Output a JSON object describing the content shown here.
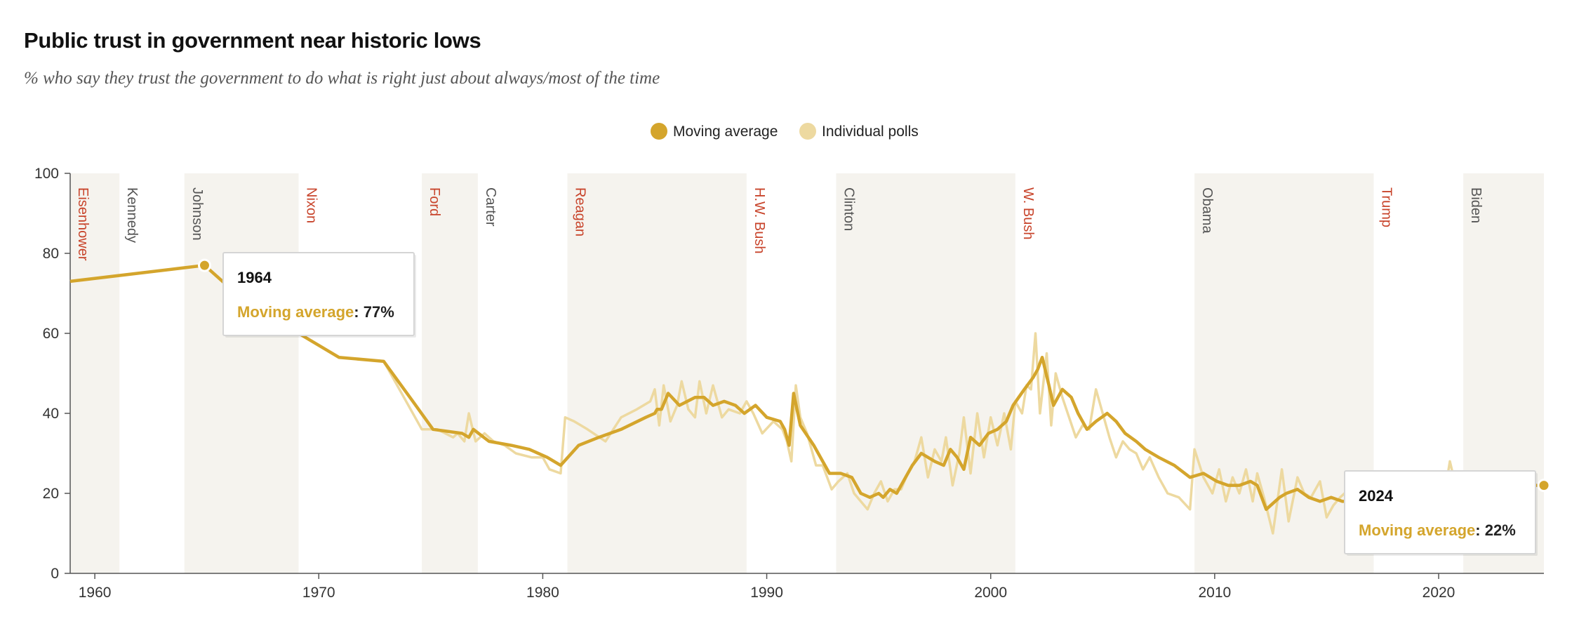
{
  "header": {
    "title": "Public trust in government near historic lows",
    "subtitle": "% who say they trust the government to do what is right just about always/most of the time"
  },
  "colors": {
    "moving_average": "#D4A52C",
    "individual_polls": "#EDD9A0",
    "republican": "#C8442B",
    "democrat": "#555555",
    "band": "#F5F3EE"
  },
  "chart_data": {
    "type": "line",
    "title": "Public trust in government near historic lows",
    "subtitle": "% who say they trust the government to do what is right just about always/most of the time",
    "xlim": [
      1958.9,
      2024.7
    ],
    "ylim": [
      0,
      100
    ],
    "x_ticks": [
      1960,
      1970,
      1980,
      1990,
      2000,
      2010,
      2020
    ],
    "y_ticks": [
      0,
      20,
      40,
      60,
      80,
      100
    ],
    "grid": false,
    "legend_position": "top-center",
    "legend": [
      "Moving average",
      "Individual polls"
    ],
    "presidents": [
      {
        "name": "Eisenhower",
        "start": 1958.9,
        "end": 1961.1,
        "party": "R"
      },
      {
        "name": "Kennedy",
        "start": 1961.1,
        "end": 1964.0,
        "party": "D"
      },
      {
        "name": "Johnson",
        "start": 1964.0,
        "end": 1969.1,
        "party": "D"
      },
      {
        "name": "Nixon",
        "start": 1969.1,
        "end": 1974.6,
        "party": "R"
      },
      {
        "name": "Ford",
        "start": 1974.6,
        "end": 1977.1,
        "party": "R"
      },
      {
        "name": "Carter",
        "start": 1977.1,
        "end": 1981.1,
        "party": "D"
      },
      {
        "name": "Reagan",
        "start": 1981.1,
        "end": 1989.1,
        "party": "R"
      },
      {
        "name": "H.W. Bush",
        "start": 1989.1,
        "end": 1993.1,
        "party": "R"
      },
      {
        "name": "Clinton",
        "start": 1993.1,
        "end": 2001.1,
        "party": "D"
      },
      {
        "name": "W. Bush",
        "start": 2001.1,
        "end": 2009.1,
        "party": "R"
      },
      {
        "name": "Obama",
        "start": 2009.1,
        "end": 2017.1,
        "party": "D"
      },
      {
        "name": "Trump",
        "start": 2017.1,
        "end": 2021.1,
        "party": "R"
      },
      {
        "name": "Biden",
        "start": 2021.1,
        "end": 2024.7,
        "party": "D"
      }
    ],
    "series": [
      {
        "name": "Moving average",
        "x": [
          1958.9,
          1964.9,
          1966.5,
          1968.5,
          1970.9,
          1972.9,
          1974.2,
          1975.1,
          1976.4,
          1976.7,
          1976.9,
          1977.6,
          1978.6,
          1979.4,
          1980.2,
          1980.8,
          1981.6,
          1982.5,
          1983.5,
          1984.6,
          1985.0,
          1985.1,
          1985.3,
          1985.6,
          1986.1,
          1986.8,
          1987.2,
          1987.6,
          1988.1,
          1988.6,
          1989.0,
          1989.5,
          1990.0,
          1990.6,
          1990.8,
          1991.0,
          1991.2,
          1991.5,
          1992.1,
          1992.8,
          1993.3,
          1993.8,
          1994.2,
          1994.6,
          1995.0,
          1995.2,
          1995.5,
          1995.8,
          1996.2,
          1996.5,
          1996.9,
          1997.2,
          1997.5,
          1997.9,
          1998.2,
          1998.5,
          1998.8,
          1999.1,
          1999.5,
          1999.9,
          2000.3,
          2000.7,
          2001.0,
          2001.5,
          2001.9,
          2002.1,
          2002.3,
          2002.6,
          2002.8,
          2003.2,
          2003.6,
          2003.9,
          2004.3,
          2004.7,
          2005.2,
          2005.6,
          2006.0,
          2006.5,
          2006.9,
          2007.5,
          2008.2,
          2008.9,
          2009.5,
          2010.1,
          2010.6,
          2011.1,
          2011.6,
          2011.9,
          2012.3,
          2012.9,
          2013.2,
          2013.7,
          2014.2,
          2014.7,
          2015.2,
          2015.7,
          2016.3,
          2016.8,
          2017.3,
          2017.8,
          2018.4,
          2019.0,
          2019.5,
          2020.0,
          2020.6,
          2021.2,
          2021.8,
          2022.5,
          2023.2,
          2023.8,
          2024.4
        ],
        "values": [
          73,
          77,
          69,
          62,
          54,
          53,
          43,
          36,
          35,
          34,
          36,
          33,
          32,
          31,
          29,
          27,
          32,
          34,
          36,
          39,
          40,
          41,
          41,
          45,
          42,
          44,
          44,
          42,
          43,
          42,
          40,
          42,
          39,
          38,
          36,
          32,
          45,
          37,
          32,
          25,
          25,
          24,
          20,
          19,
          20,
          19,
          21,
          20,
          24,
          27,
          30,
          29,
          28,
          27,
          31,
          29,
          26,
          34,
          32,
          35,
          36,
          38,
          42,
          46,
          49,
          51,
          54,
          47,
          42,
          46,
          44,
          40,
          36,
          38,
          40,
          38,
          35,
          33,
          31,
          29,
          27,
          24,
          25,
          23,
          22,
          22,
          23,
          22,
          16,
          19,
          20,
          21,
          19,
          18,
          19,
          18,
          18,
          18,
          18,
          19,
          18,
          18,
          19,
          20,
          21,
          21,
          22,
          22,
          22,
          22,
          22
        ]
      },
      {
        "name": "Individual polls",
        "x": [
          1958.9,
          1964.9,
          1966.5,
          1968.5,
          1970.9,
          1972.9,
          1974.6,
          1975.3,
          1976.0,
          1976.2,
          1976.5,
          1976.7,
          1977.0,
          1977.4,
          1977.8,
          1978.3,
          1978.8,
          1979.5,
          1980.0,
          1980.3,
          1980.8,
          1981.0,
          1981.4,
          1982.0,
          1982.8,
          1983.5,
          1984.2,
          1984.8,
          1985.0,
          1985.2,
          1985.4,
          1985.7,
          1986.0,
          1986.2,
          1986.5,
          1986.8,
          1987.0,
          1987.3,
          1987.6,
          1988.0,
          1988.3,
          1988.8,
          1989.1,
          1989.4,
          1989.8,
          1990.3,
          1990.7,
          1990.9,
          1991.1,
          1991.3,
          1991.5,
          1991.8,
          1992.2,
          1992.5,
          1992.9,
          1993.2,
          1993.6,
          1993.9,
          1994.2,
          1994.5,
          1994.8,
          1995.1,
          1995.4,
          1995.7,
          1996.0,
          1996.3,
          1996.6,
          1996.9,
          1997.2,
          1997.5,
          1997.8,
          1998.0,
          1998.3,
          1998.6,
          1998.8,
          1999.1,
          1999.4,
          1999.7,
          2000.0,
          2000.3,
          2000.6,
          2000.9,
          2001.1,
          2001.4,
          2001.6,
          2001.8,
          2002.0,
          2002.2,
          2002.5,
          2002.7,
          2002.9,
          2003.2,
          2003.5,
          2003.8,
          2004.1,
          2004.4,
          2004.7,
          2005.0,
          2005.3,
          2005.6,
          2005.9,
          2006.2,
          2006.5,
          2006.8,
          2007.1,
          2007.5,
          2007.9,
          2008.4,
          2008.9,
          2009.1,
          2009.5,
          2009.9,
          2010.2,
          2010.5,
          2010.8,
          2011.1,
          2011.4,
          2011.7,
          2011.9,
          2012.2,
          2012.6,
          2013.0,
          2013.3,
          2013.7,
          2014.0,
          2014.3,
          2014.7,
          2015.0,
          2015.3,
          2015.6,
          2016.0,
          2016.4,
          2016.8,
          2017.2,
          2017.6,
          2018.0,
          2018.4,
          2018.9,
          2019.3,
          2019.7,
          2020.0,
          2020.3,
          2020.5,
          2020.8,
          2021.2,
          2021.7,
          2022.2,
          2022.7,
          2023.2,
          2023.7,
          2024.2,
          2024.7
        ],
        "values": [
          73,
          77,
          69,
          62,
          54,
          53,
          36,
          36,
          34,
          35,
          33,
          40,
          33,
          35,
          33,
          32,
          30,
          29,
          29,
          26,
          25,
          39,
          38,
          36,
          33,
          39,
          41,
          43,
          46,
          37,
          47,
          38,
          42,
          48,
          41,
          39,
          48,
          40,
          47,
          39,
          41,
          40,
          43,
          40,
          35,
          38,
          36,
          33,
          28,
          47,
          39,
          35,
          27,
          27,
          21,
          23,
          25,
          20,
          18,
          16,
          20,
          23,
          18,
          21,
          21,
          25,
          28,
          34,
          24,
          31,
          28,
          34,
          22,
          30,
          39,
          25,
          40,
          29,
          39,
          32,
          40,
          31,
          43,
          40,
          47,
          46,
          60,
          40,
          55,
          37,
          50,
          44,
          39,
          34,
          37,
          36,
          46,
          40,
          34,
          29,
          33,
          31,
          30,
          26,
          29,
          24,
          20,
          19,
          16,
          31,
          24,
          20,
          26,
          18,
          24,
          20,
          26,
          18,
          25,
          19,
          10,
          26,
          13,
          24,
          20,
          19,
          23,
          14,
          17,
          19,
          21,
          20,
          17,
          18,
          18,
          18,
          19,
          17,
          19,
          17,
          20,
          21,
          28,
          21,
          21,
          22,
          21,
          23,
          22,
          21,
          22,
          22
        ]
      }
    ],
    "tooltips": [
      {
        "year": "1964",
        "label": "Moving average",
        "value_text": ": 77%",
        "x": 1964.9,
        "y": 77
      },
      {
        "year": "2024",
        "label": "Moving average",
        "value_text": ": 22%",
        "x": 2024.7,
        "y": 22
      }
    ]
  }
}
